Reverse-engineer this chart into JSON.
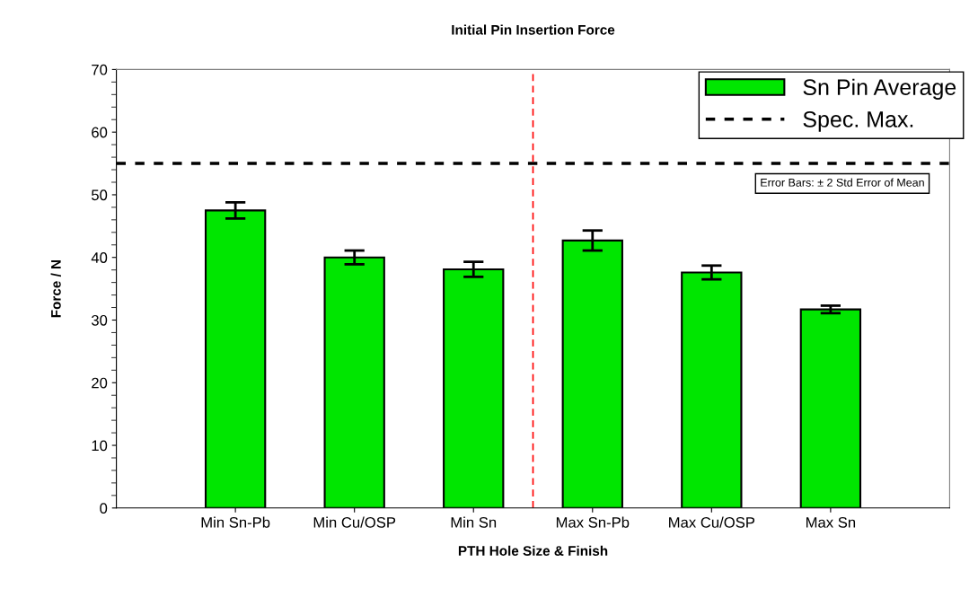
{
  "chart_data": {
    "type": "bar",
    "title": "Initial Pin Insertion Force",
    "xlabel": "PTH Hole Size & Finish",
    "ylabel": "Force / N",
    "categories": [
      "Min Sn-Pb",
      "Min Cu/OSP",
      "Min Sn",
      "Max Sn-Pb",
      "Max Cu/OSP",
      "Max Sn"
    ],
    "series": [
      {
        "name": "Sn Pin Average",
        "color": "#00e600",
        "values": [
          47.5,
          40.0,
          38.1,
          42.7,
          37.6,
          31.7
        ],
        "errors": [
          1.3,
          1.1,
          1.2,
          1.6,
          1.1,
          0.6
        ]
      }
    ],
    "ylim": [
      0,
      70
    ],
    "yticks": [
      0,
      10,
      20,
      30,
      40,
      50,
      60,
      70
    ],
    "ref_lines": [
      {
        "axis": "y",
        "value": 55,
        "label": "Spec. Max.",
        "color": "#000000",
        "line_style": "dotted"
      }
    ],
    "annotations": [
      "Error Bars: ± 2 Std Error of Mean"
    ],
    "legend": "top right",
    "grid": false
  }
}
